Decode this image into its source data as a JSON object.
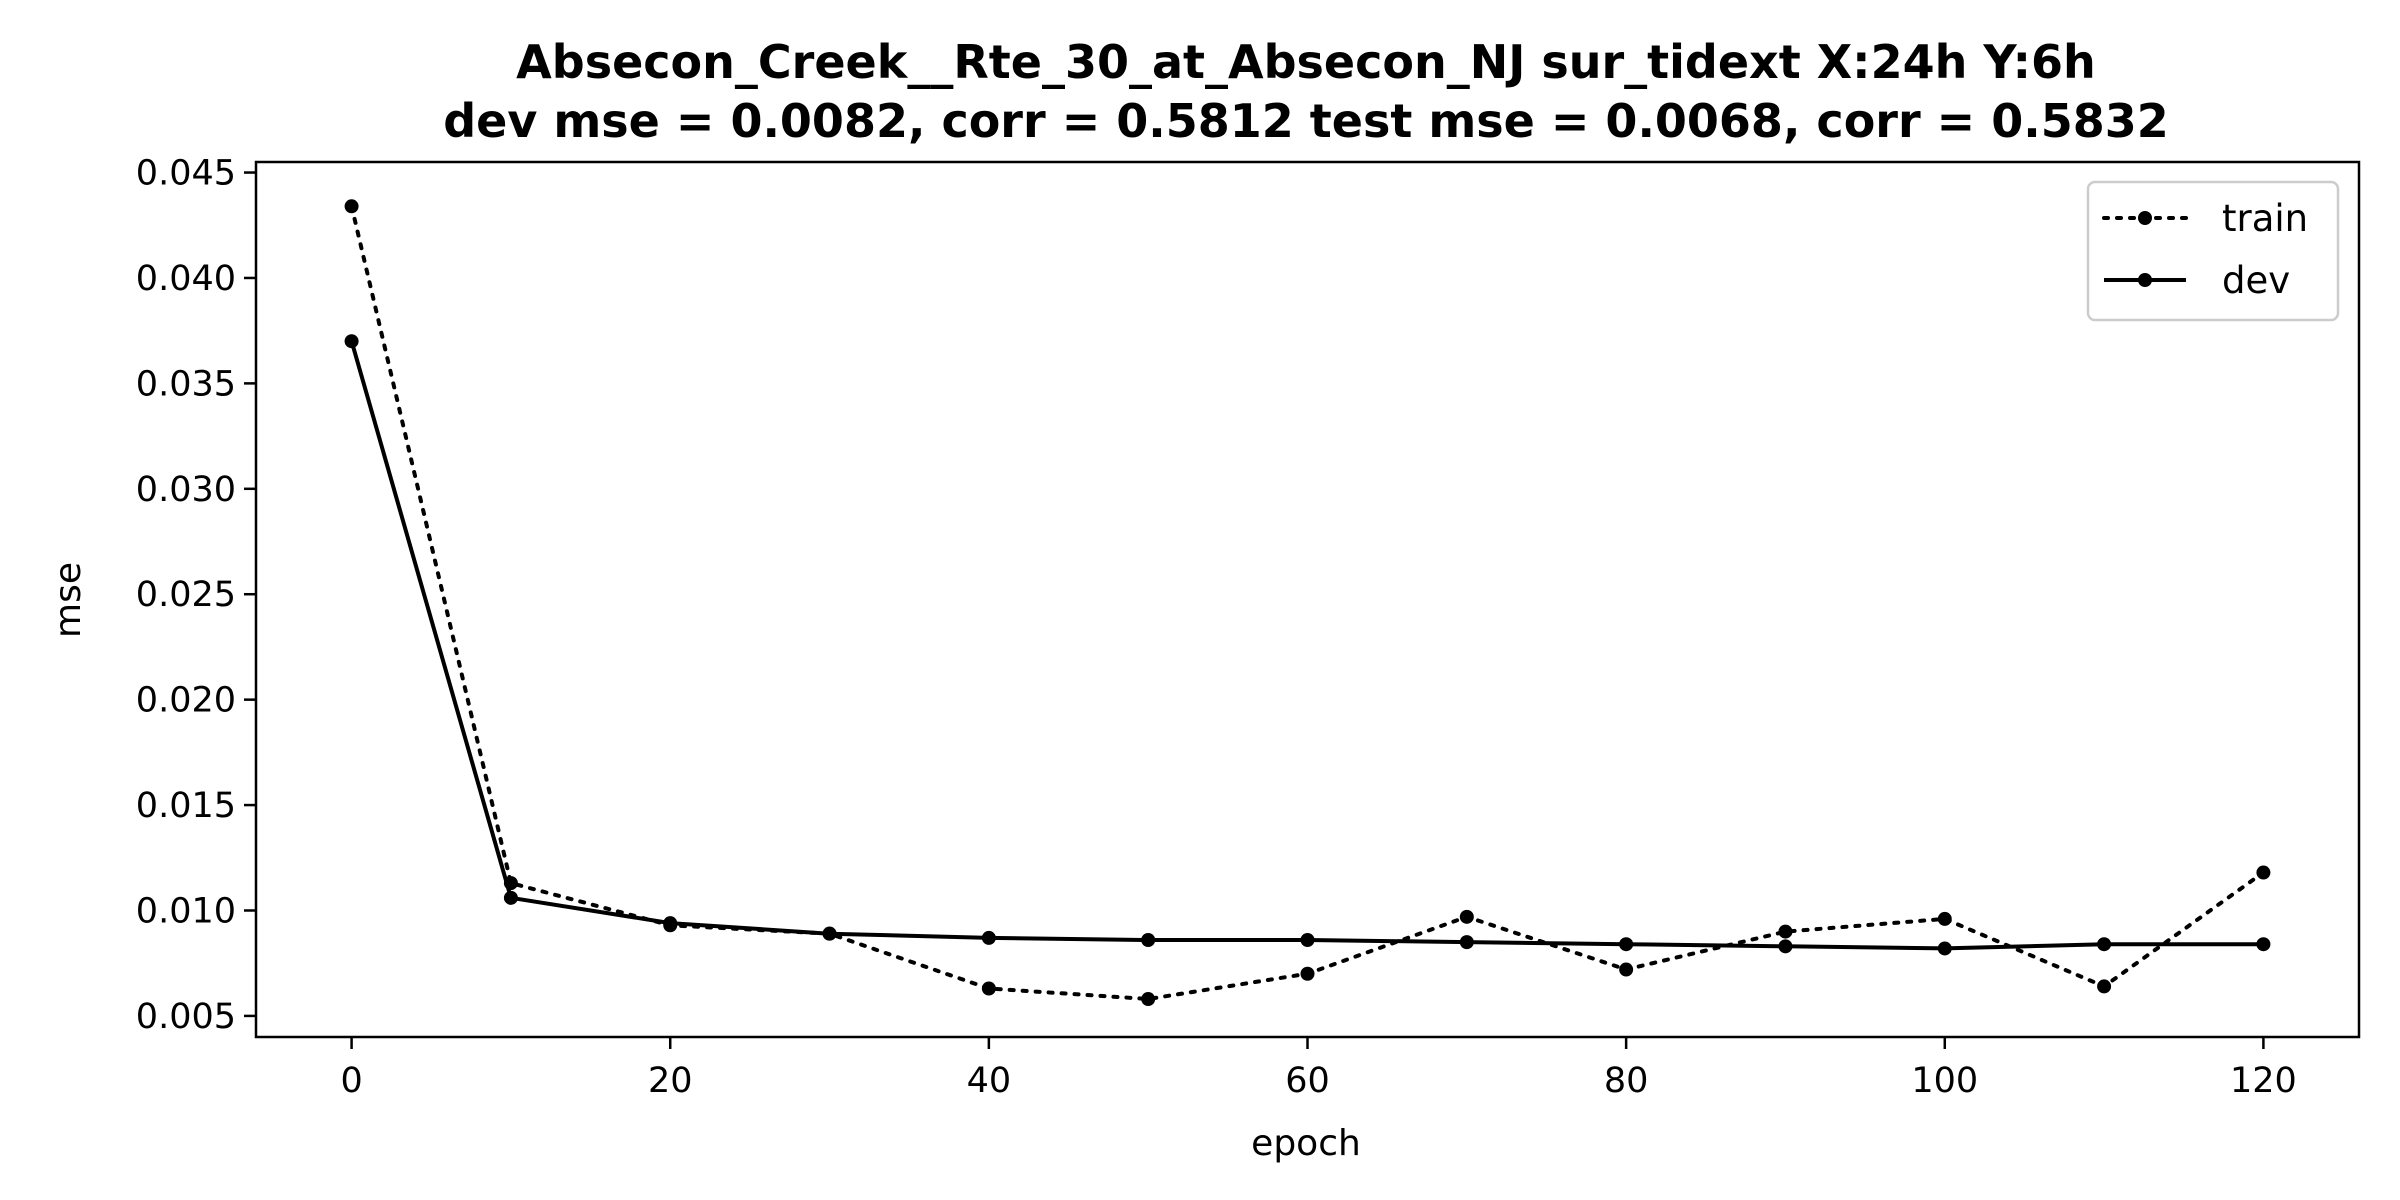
{
  "chart_data": {
    "type": "line",
    "title_line1": "Absecon_Creek__Rte_30_at_Absecon_NJ   sur_tidext   X:24h   Y:6h",
    "title_line2": "dev mse = 0.0082, corr = 0.5812   test mse = 0.0068, corr = 0.5832",
    "xlabel": "epoch",
    "ylabel": "mse",
    "xlim": [
      -6,
      126
    ],
    "ylim": [
      0.004,
      0.0455
    ],
    "xticks": [
      0,
      20,
      40,
      60,
      80,
      100,
      120
    ],
    "yticks": [
      0.005,
      0.01,
      0.015,
      0.02,
      0.025,
      0.03,
      0.035,
      0.04,
      0.045
    ],
    "ytick_labels": [
      "0.005",
      "0.010",
      "0.015",
      "0.020",
      "0.025",
      "0.030",
      "0.035",
      "0.040",
      "0.045"
    ],
    "x": [
      0,
      10,
      20,
      30,
      40,
      50,
      60,
      70,
      80,
      90,
      100,
      110,
      120
    ],
    "series": [
      {
        "name": "train",
        "style": "dotted",
        "color": "#000000",
        "values": [
          0.0434,
          0.0113,
          0.0093,
          0.0089,
          0.0063,
          0.0058,
          0.007,
          0.0097,
          0.0072,
          0.009,
          0.0096,
          0.0064,
          0.0118
        ]
      },
      {
        "name": "dev",
        "style": "solid",
        "color": "#000000",
        "values": [
          0.037,
          0.0106,
          0.0094,
          0.0089,
          0.0087,
          0.0086,
          0.0086,
          0.0085,
          0.0084,
          0.0083,
          0.0082,
          0.0084,
          0.0084
        ]
      }
    ],
    "legend_position": "upper-right",
    "grid": false
  }
}
